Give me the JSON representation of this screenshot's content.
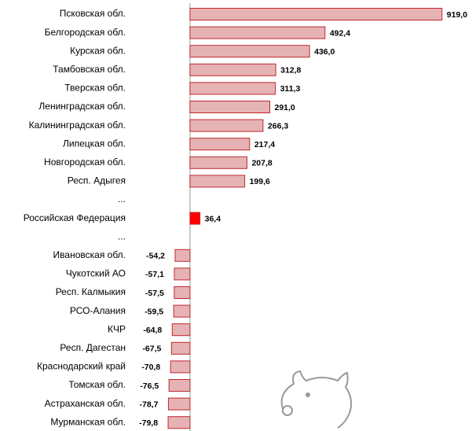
{
  "chart_data": {
    "type": "hbar",
    "categories": [
      "Псковская обл.",
      "Белгородская обл.",
      "Курская обл.",
      "Тамбовская обл.",
      "Тверская обл.",
      "Ленинградская обл.",
      "Калининградская обл.",
      "Липецкая обл.",
      "Новгородская обл.",
      "Респ. Адыгея",
      "...",
      "Российская Федерация",
      "...",
      "Ивановская обл.",
      "Чукотский АО",
      "Респ. Калмыкия",
      "РСО-Алания",
      "КЧР",
      "Респ. Дагестан",
      "Краснодарский край",
      "Томская обл.",
      "Астраханская обл.",
      "Мурманская обл."
    ],
    "values": [
      919.0,
      492.4,
      436.0,
      312.8,
      311.3,
      291.0,
      266.3,
      217.4,
      207.8,
      199.6,
      null,
      36.4,
      null,
      -54.2,
      -57.1,
      -57.5,
      -59.5,
      -64.8,
      -67.5,
      -70.8,
      -76.5,
      -78.7,
      -79.8
    ],
    "value_labels": [
      "919,0",
      "492,4",
      "436,0",
      "312,8",
      "311,3",
      "291,0",
      "266,3",
      "217,4",
      "207,8",
      "199,6",
      null,
      "36,4",
      null,
      "-54,2",
      "-57,1",
      "-57,5",
      "-59,5",
      "-64,8",
      "-67,5",
      "-70,8",
      "-76,5",
      "-78,7",
      "-79,8"
    ],
    "colors": [
      "#e6b3b5",
      "#e6b3b5",
      "#e6b3b5",
      "#e6b3b5",
      "#e6b3b5",
      "#e6b3b5",
      "#e6b3b5",
      "#e6b3b5",
      "#e6b3b5",
      "#e6b3b5",
      null,
      "#ff0000",
      null,
      "#e6b3b5",
      "#e6b3b5",
      "#e6b3b5",
      "#e6b3b5",
      "#e6b3b5",
      "#e6b3b5",
      "#e6b3b5",
      "#e6b3b5",
      "#e6b3b5",
      "#e6b3b5"
    ],
    "border_color": "#c0282d",
    "xlim": [
      -100,
      950
    ]
  }
}
